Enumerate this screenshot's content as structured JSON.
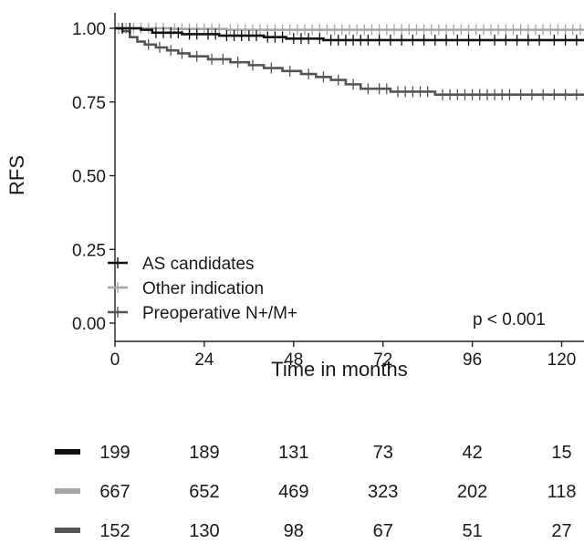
{
  "chart_data": {
    "type": "line",
    "step": true,
    "title": "",
    "ylabel": "RFS",
    "xlabel": "Time in months",
    "xlim": [
      0,
      126
    ],
    "ylim": [
      0,
      1
    ],
    "xticks": [
      0,
      24,
      48,
      72,
      96,
      120
    ],
    "yticks": [
      "0.00",
      "0.25",
      "0.50",
      "0.75",
      "1.00"
    ],
    "grid": false,
    "legend_position": "bottom-left",
    "annotation": "p < 0.001",
    "series": [
      {
        "name": "AS candidates",
        "color": "#111111",
        "points": [
          [
            0,
            1.0
          ],
          [
            7,
            0.995
          ],
          [
            10,
            0.985
          ],
          [
            18,
            0.98
          ],
          [
            28,
            0.975
          ],
          [
            40,
            0.97
          ],
          [
            46,
            0.965
          ],
          [
            56,
            0.96
          ],
          [
            126,
            0.96
          ]
        ],
        "censor": [
          2,
          4,
          11,
          13,
          15,
          17,
          20,
          22,
          25,
          27,
          30,
          32,
          34,
          36,
          38,
          41,
          43,
          45,
          48,
          50,
          52,
          55,
          58,
          60,
          62,
          64,
          66,
          68,
          71,
          74,
          77,
          80,
          83,
          86,
          89,
          92,
          95,
          98,
          102,
          105,
          108,
          111,
          114,
          118,
          121,
          124
        ]
      },
      {
        "name": "Other indication",
        "color": "#a6a6a6",
        "points": [
          [
            0,
            1.0
          ],
          [
            15,
            0.998
          ],
          [
            30,
            0.995
          ],
          [
            126,
            0.995
          ]
        ],
        "censor": [
          1,
          3,
          5,
          7,
          9,
          11,
          13,
          16,
          18,
          20,
          22,
          24,
          26,
          28,
          31,
          33,
          35,
          37,
          39,
          41,
          43,
          45,
          47,
          49,
          51,
          53,
          55,
          57,
          59,
          61,
          63,
          65,
          67,
          69,
          71,
          73,
          75,
          77,
          79,
          81,
          83,
          85,
          87,
          89,
          91,
          93,
          95,
          97,
          99,
          101,
          103,
          105,
          107,
          109,
          111,
          113,
          115,
          117,
          119,
          121,
          123,
          125
        ]
      },
      {
        "name": "Preoperative N+/M+",
        "color": "#555555",
        "points": [
          [
            0,
            1.0
          ],
          [
            2,
            0.99
          ],
          [
            4,
            0.97
          ],
          [
            6,
            0.955
          ],
          [
            8,
            0.945
          ],
          [
            11,
            0.935
          ],
          [
            14,
            0.925
          ],
          [
            17,
            0.915
          ],
          [
            20,
            0.905
          ],
          [
            25,
            0.895
          ],
          [
            31,
            0.885
          ],
          [
            36,
            0.875
          ],
          [
            40,
            0.865
          ],
          [
            45,
            0.855
          ],
          [
            50,
            0.845
          ],
          [
            54,
            0.835
          ],
          [
            58,
            0.825
          ],
          [
            62,
            0.81
          ],
          [
            66,
            0.795
          ],
          [
            74,
            0.785
          ],
          [
            86,
            0.775
          ],
          [
            126,
            0.775
          ]
        ],
        "censor": [
          9,
          12,
          15,
          18,
          22,
          26,
          29,
          33,
          37,
          42,
          47,
          52,
          56,
          60,
          64,
          68,
          71,
          73,
          76,
          78,
          80,
          82,
          84,
          88,
          90,
          92,
          94,
          96,
          98,
          100,
          102,
          104,
          106,
          109,
          112,
          115,
          118,
          121,
          124
        ]
      }
    ],
    "risk_table": {
      "times": [
        0,
        24,
        48,
        72,
        96,
        120
      ],
      "rows": [
        {
          "color": "#111111",
          "values": [
            "199",
            "189",
            "131",
            "73",
            "42",
            "15"
          ]
        },
        {
          "color": "#a6a6a6",
          "values": [
            "667",
            "652",
            "469",
            "323",
            "202",
            "118"
          ]
        },
        {
          "color": "#555555",
          "values": [
            "152",
            "130",
            "98",
            "67",
            "51",
            "27"
          ]
        }
      ]
    }
  }
}
